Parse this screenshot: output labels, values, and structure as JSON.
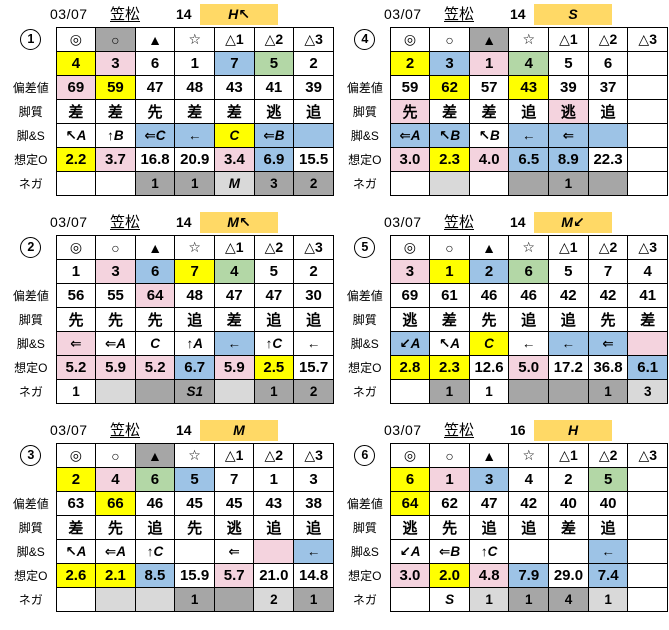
{
  "colors": {
    "yellow": "#FFFF00",
    "pink": "#F4D3DE",
    "blue": "#9DC3E6",
    "green": "#B3D7A6",
    "orange": "#FFD966",
    "gray": "#A6A6A6",
    "lightgray": "#D9D9D9",
    "white": "#FFFFFF"
  },
  "row_labels": [
    "",
    "",
    "偏差値",
    "脚質",
    "脚&S",
    "想定O",
    "ネガ"
  ],
  "tables": [
    {
      "entry": "1",
      "date": "03/07",
      "track": "笠松",
      "race": "14",
      "code": "H↖",
      "rows": [
        [
          {
            "t": "◎"
          },
          {
            "t": "○",
            "bg": "gray"
          },
          {
            "t": "▲"
          },
          {
            "t": "☆"
          },
          {
            "t": "△1"
          },
          {
            "t": "△2"
          },
          {
            "t": "△3"
          }
        ],
        [
          {
            "t": "4",
            "bg": "yellow"
          },
          {
            "t": "3",
            "bg": "pink"
          },
          {
            "t": "6"
          },
          {
            "t": "1"
          },
          {
            "t": "7",
            "bg": "blue"
          },
          {
            "t": "5",
            "bg": "green"
          },
          {
            "t": "2"
          }
        ],
        [
          {
            "t": "69",
            "bg": "pink"
          },
          {
            "t": "59",
            "bg": "yellow"
          },
          {
            "t": "47"
          },
          {
            "t": "48"
          },
          {
            "t": "43"
          },
          {
            "t": "41"
          },
          {
            "t": "39"
          }
        ],
        [
          {
            "t": "差"
          },
          {
            "t": "差"
          },
          {
            "t": "先"
          },
          {
            "t": "差"
          },
          {
            "t": "差"
          },
          {
            "t": "逃"
          },
          {
            "t": "追"
          }
        ],
        [
          {
            "t": "↖A",
            "i": 1
          },
          {
            "t": "↑B",
            "i": 1
          },
          {
            "t": "⇐C",
            "bg": "blue",
            "i": 1
          },
          {
            "t": "←",
            "bg": "blue"
          },
          {
            "t": "C",
            "bg": "yellow",
            "i": 1
          },
          {
            "t": "⇐B",
            "bg": "blue",
            "i": 1
          },
          {
            "t": "",
            "bg": "blue"
          }
        ],
        [
          {
            "t": "2.2",
            "bg": "yellow"
          },
          {
            "t": "3.7",
            "bg": "pink"
          },
          {
            "t": "16.8"
          },
          {
            "t": "20.9"
          },
          {
            "t": "3.4",
            "bg": "pink"
          },
          {
            "t": "6.9",
            "bg": "blue"
          },
          {
            "t": "15.5"
          }
        ],
        [
          {
            "t": ""
          },
          {
            "t": ""
          },
          {
            "t": "1",
            "bg": "gray"
          },
          {
            "t": "1",
            "bg": "gray"
          },
          {
            "t": "M",
            "bg": "lightgray",
            "i": 1
          },
          {
            "t": "3",
            "bg": "gray"
          },
          {
            "t": "2",
            "bg": "gray"
          }
        ]
      ]
    },
    {
      "entry": "2",
      "date": "03/07",
      "track": "笠松",
      "race": "14",
      "code": "M↖",
      "rows": [
        [
          {
            "t": "◎"
          },
          {
            "t": "○"
          },
          {
            "t": "▲"
          },
          {
            "t": "☆"
          },
          {
            "t": "△1"
          },
          {
            "t": "△2"
          },
          {
            "t": "△3"
          }
        ],
        [
          {
            "t": "1"
          },
          {
            "t": "3",
            "bg": "pink"
          },
          {
            "t": "6",
            "bg": "blue"
          },
          {
            "t": "7",
            "bg": "yellow"
          },
          {
            "t": "4",
            "bg": "green"
          },
          {
            "t": "5"
          },
          {
            "t": "2"
          }
        ],
        [
          {
            "t": "56"
          },
          {
            "t": "55"
          },
          {
            "t": "64",
            "bg": "pink"
          },
          {
            "t": "48"
          },
          {
            "t": "47"
          },
          {
            "t": "47"
          },
          {
            "t": "30"
          }
        ],
        [
          {
            "t": "先"
          },
          {
            "t": "先"
          },
          {
            "t": "先"
          },
          {
            "t": "追"
          },
          {
            "t": "差"
          },
          {
            "t": "追"
          },
          {
            "t": "追"
          }
        ],
        [
          {
            "t": "⇐",
            "bg": "pink"
          },
          {
            "t": "⇐A",
            "i": 1
          },
          {
            "t": "C",
            "i": 1
          },
          {
            "t": "↑A",
            "i": 1
          },
          {
            "t": "←",
            "bg": "blue"
          },
          {
            "t": "↑C",
            "i": 1
          },
          {
            "t": "←"
          }
        ],
        [
          {
            "t": "5.2",
            "bg": "pink"
          },
          {
            "t": "5.9",
            "bg": "pink"
          },
          {
            "t": "5.2",
            "bg": "pink"
          },
          {
            "t": "6.7",
            "bg": "blue"
          },
          {
            "t": "5.9",
            "bg": "pink"
          },
          {
            "t": "2.5",
            "bg": "yellow"
          },
          {
            "t": "15.7"
          }
        ],
        [
          {
            "t": "1"
          },
          {
            "t": "",
            "bg": "lightgray"
          },
          {
            "t": "",
            "bg": "gray"
          },
          {
            "t": "S1",
            "bg": "gray",
            "i": 1
          },
          {
            "t": "",
            "bg": "lightgray"
          },
          {
            "t": "1",
            "bg": "gray"
          },
          {
            "t": "2",
            "bg": "gray"
          }
        ]
      ]
    },
    {
      "entry": "3",
      "date": "03/07",
      "track": "笠松",
      "race": "14",
      "code": "M",
      "rows": [
        [
          {
            "t": "◎"
          },
          {
            "t": "○"
          },
          {
            "t": "▲",
            "bg": "gray"
          },
          {
            "t": "☆"
          },
          {
            "t": "△1"
          },
          {
            "t": "△2"
          },
          {
            "t": "△3"
          }
        ],
        [
          {
            "t": "2",
            "bg": "yellow"
          },
          {
            "t": "4",
            "bg": "pink"
          },
          {
            "t": "6",
            "bg": "green"
          },
          {
            "t": "5",
            "bg": "blue"
          },
          {
            "t": "7"
          },
          {
            "t": "1"
          },
          {
            "t": "3"
          }
        ],
        [
          {
            "t": "63"
          },
          {
            "t": "66",
            "bg": "yellow"
          },
          {
            "t": "46"
          },
          {
            "t": "45"
          },
          {
            "t": "45"
          },
          {
            "t": "43"
          },
          {
            "t": "38"
          }
        ],
        [
          {
            "t": "差"
          },
          {
            "t": "先"
          },
          {
            "t": "追"
          },
          {
            "t": "先"
          },
          {
            "t": "逃"
          },
          {
            "t": "追"
          },
          {
            "t": "追"
          }
        ],
        [
          {
            "t": "↖A",
            "i": 1
          },
          {
            "t": "⇐A",
            "i": 1
          },
          {
            "t": "↑C",
            "i": 1
          },
          {
            "t": ""
          },
          {
            "t": "⇐"
          },
          {
            "t": "",
            "bg": "pink"
          },
          {
            "t": "←",
            "bg": "blue"
          }
        ],
        [
          {
            "t": "2.6",
            "bg": "yellow"
          },
          {
            "t": "2.1",
            "bg": "yellow"
          },
          {
            "t": "8.5",
            "bg": "blue"
          },
          {
            "t": "15.9"
          },
          {
            "t": "5.7",
            "bg": "pink"
          },
          {
            "t": "21.0"
          },
          {
            "t": "14.8"
          }
        ],
        [
          {
            "t": ""
          },
          {
            "t": "",
            "bg": "lightgray"
          },
          {
            "t": "",
            "bg": "lightgray"
          },
          {
            "t": "1",
            "bg": "gray"
          },
          {
            "t": "",
            "bg": "gray"
          },
          {
            "t": "2",
            "bg": "lightgray"
          },
          {
            "t": "1",
            "bg": "gray"
          }
        ]
      ]
    },
    {
      "entry": "4",
      "date": "03/07",
      "track": "笠松",
      "race": "14",
      "code": "S",
      "rows": [
        [
          {
            "t": "◎"
          },
          {
            "t": "○"
          },
          {
            "t": "▲",
            "bg": "gray"
          },
          {
            "t": "☆"
          },
          {
            "t": "△1"
          },
          {
            "t": "△2"
          },
          {
            "t": "△3"
          }
        ],
        [
          {
            "t": "2",
            "bg": "yellow"
          },
          {
            "t": "3",
            "bg": "blue"
          },
          {
            "t": "1",
            "bg": "pink"
          },
          {
            "t": "4",
            "bg": "green"
          },
          {
            "t": "5"
          },
          {
            "t": "6"
          },
          {
            "t": ""
          }
        ],
        [
          {
            "t": "59"
          },
          {
            "t": "62",
            "bg": "yellow"
          },
          {
            "t": "57"
          },
          {
            "t": "43",
            "bg": "yellow"
          },
          {
            "t": "39"
          },
          {
            "t": "37"
          },
          {
            "t": ""
          }
        ],
        [
          {
            "t": "先",
            "bg": "pink"
          },
          {
            "t": "差"
          },
          {
            "t": "差"
          },
          {
            "t": "追"
          },
          {
            "t": "逃",
            "bg": "pink"
          },
          {
            "t": "追"
          },
          {
            "t": ""
          }
        ],
        [
          {
            "t": "⇐A",
            "bg": "blue",
            "i": 1
          },
          {
            "t": "↖B",
            "bg": "blue",
            "i": 1
          },
          {
            "t": "↖B",
            "i": 1
          },
          {
            "t": "←",
            "bg": "blue"
          },
          {
            "t": "⇐",
            "bg": "blue"
          },
          {
            "t": "",
            "bg": "blue"
          },
          {
            "t": ""
          }
        ],
        [
          {
            "t": "3.0",
            "bg": "pink"
          },
          {
            "t": "2.3",
            "bg": "yellow"
          },
          {
            "t": "4.0",
            "bg": "pink"
          },
          {
            "t": "6.5",
            "bg": "blue"
          },
          {
            "t": "8.9",
            "bg": "blue"
          },
          {
            "t": "22.3"
          },
          {
            "t": ""
          }
        ],
        [
          {
            "t": ""
          },
          {
            "t": "",
            "bg": "lightgray"
          },
          {
            "t": ""
          },
          {
            "t": "",
            "bg": "gray"
          },
          {
            "t": "1",
            "bg": "gray"
          },
          {
            "t": "",
            "bg": "gray"
          },
          {
            "t": ""
          }
        ]
      ]
    },
    {
      "entry": "5",
      "date": "03/07",
      "track": "笠松",
      "race": "14",
      "code": "M↙",
      "rows": [
        [
          {
            "t": "◎"
          },
          {
            "t": "○"
          },
          {
            "t": "▲"
          },
          {
            "t": "☆"
          },
          {
            "t": "△1"
          },
          {
            "t": "△2"
          },
          {
            "t": "△3"
          }
        ],
        [
          {
            "t": "3",
            "bg": "pink"
          },
          {
            "t": "1",
            "bg": "yellow"
          },
          {
            "t": "2",
            "bg": "blue"
          },
          {
            "t": "6",
            "bg": "green"
          },
          {
            "t": "5"
          },
          {
            "t": "7"
          },
          {
            "t": "4"
          }
        ],
        [
          {
            "t": "69"
          },
          {
            "t": "61"
          },
          {
            "t": "46"
          },
          {
            "t": "46"
          },
          {
            "t": "42"
          },
          {
            "t": "42"
          },
          {
            "t": "41"
          }
        ],
        [
          {
            "t": "逃"
          },
          {
            "t": "差"
          },
          {
            "t": "先"
          },
          {
            "t": "追"
          },
          {
            "t": "追"
          },
          {
            "t": "先"
          },
          {
            "t": "差"
          }
        ],
        [
          {
            "t": "↙A",
            "bg": "blue",
            "i": 1
          },
          {
            "t": "↖A",
            "i": 1
          },
          {
            "t": "C",
            "bg": "yellow",
            "i": 1
          },
          {
            "t": "←"
          },
          {
            "t": "←",
            "bg": "blue"
          },
          {
            "t": "⇐",
            "bg": "blue"
          },
          {
            "t": "",
            "bg": "pink"
          }
        ],
        [
          {
            "t": "2.8",
            "bg": "yellow"
          },
          {
            "t": "2.3",
            "bg": "yellow"
          },
          {
            "t": "12.6"
          },
          {
            "t": "5.0",
            "bg": "pink"
          },
          {
            "t": "17.2"
          },
          {
            "t": "36.8"
          },
          {
            "t": "6.1",
            "bg": "blue"
          }
        ],
        [
          {
            "t": ""
          },
          {
            "t": "1",
            "bg": "gray"
          },
          {
            "t": "1"
          },
          {
            "t": "",
            "bg": "gray"
          },
          {
            "t": "",
            "bg": "gray"
          },
          {
            "t": "1",
            "bg": "gray"
          },
          {
            "t": "3",
            "bg": "lightgray"
          }
        ]
      ]
    },
    {
      "entry": "6",
      "date": "03/07",
      "track": "笠松",
      "race": "16",
      "code": "H",
      "rows": [
        [
          {
            "t": "◎"
          },
          {
            "t": "○"
          },
          {
            "t": "▲"
          },
          {
            "t": "☆"
          },
          {
            "t": "△1"
          },
          {
            "t": "△2"
          },
          {
            "t": "△3"
          }
        ],
        [
          {
            "t": "6",
            "bg": "yellow"
          },
          {
            "t": "1",
            "bg": "pink"
          },
          {
            "t": "3",
            "bg": "blue"
          },
          {
            "t": "4"
          },
          {
            "t": "2"
          },
          {
            "t": "5",
            "bg": "green"
          },
          {
            "t": ""
          }
        ],
        [
          {
            "t": "64",
            "bg": "yellow"
          },
          {
            "t": "62"
          },
          {
            "t": "47"
          },
          {
            "t": "42"
          },
          {
            "t": "40"
          },
          {
            "t": "40"
          },
          {
            "t": ""
          }
        ],
        [
          {
            "t": "逃"
          },
          {
            "t": "先"
          },
          {
            "t": "追"
          },
          {
            "t": "追"
          },
          {
            "t": "差"
          },
          {
            "t": "追"
          },
          {
            "t": ""
          }
        ],
        [
          {
            "t": "↙A",
            "i": 1
          },
          {
            "t": "⇐B",
            "i": 1
          },
          {
            "t": "↑C",
            "i": 1
          },
          {
            "t": ""
          },
          {
            "t": ""
          },
          {
            "t": "←",
            "bg": "blue"
          },
          {
            "t": ""
          }
        ],
        [
          {
            "t": "3.0",
            "bg": "pink"
          },
          {
            "t": "2.0",
            "bg": "yellow"
          },
          {
            "t": "4.8",
            "bg": "pink"
          },
          {
            "t": "7.9",
            "bg": "blue"
          },
          {
            "t": "29.0"
          },
          {
            "t": "7.4",
            "bg": "blue"
          },
          {
            "t": ""
          }
        ],
        [
          {
            "t": ""
          },
          {
            "t": "S",
            "i": 1
          },
          {
            "t": "1",
            "bg": "lightgray"
          },
          {
            "t": "1",
            "bg": "gray"
          },
          {
            "t": "4",
            "bg": "gray"
          },
          {
            "t": "1",
            "bg": "lightgray"
          },
          {
            "t": ""
          }
        ]
      ]
    }
  ]
}
